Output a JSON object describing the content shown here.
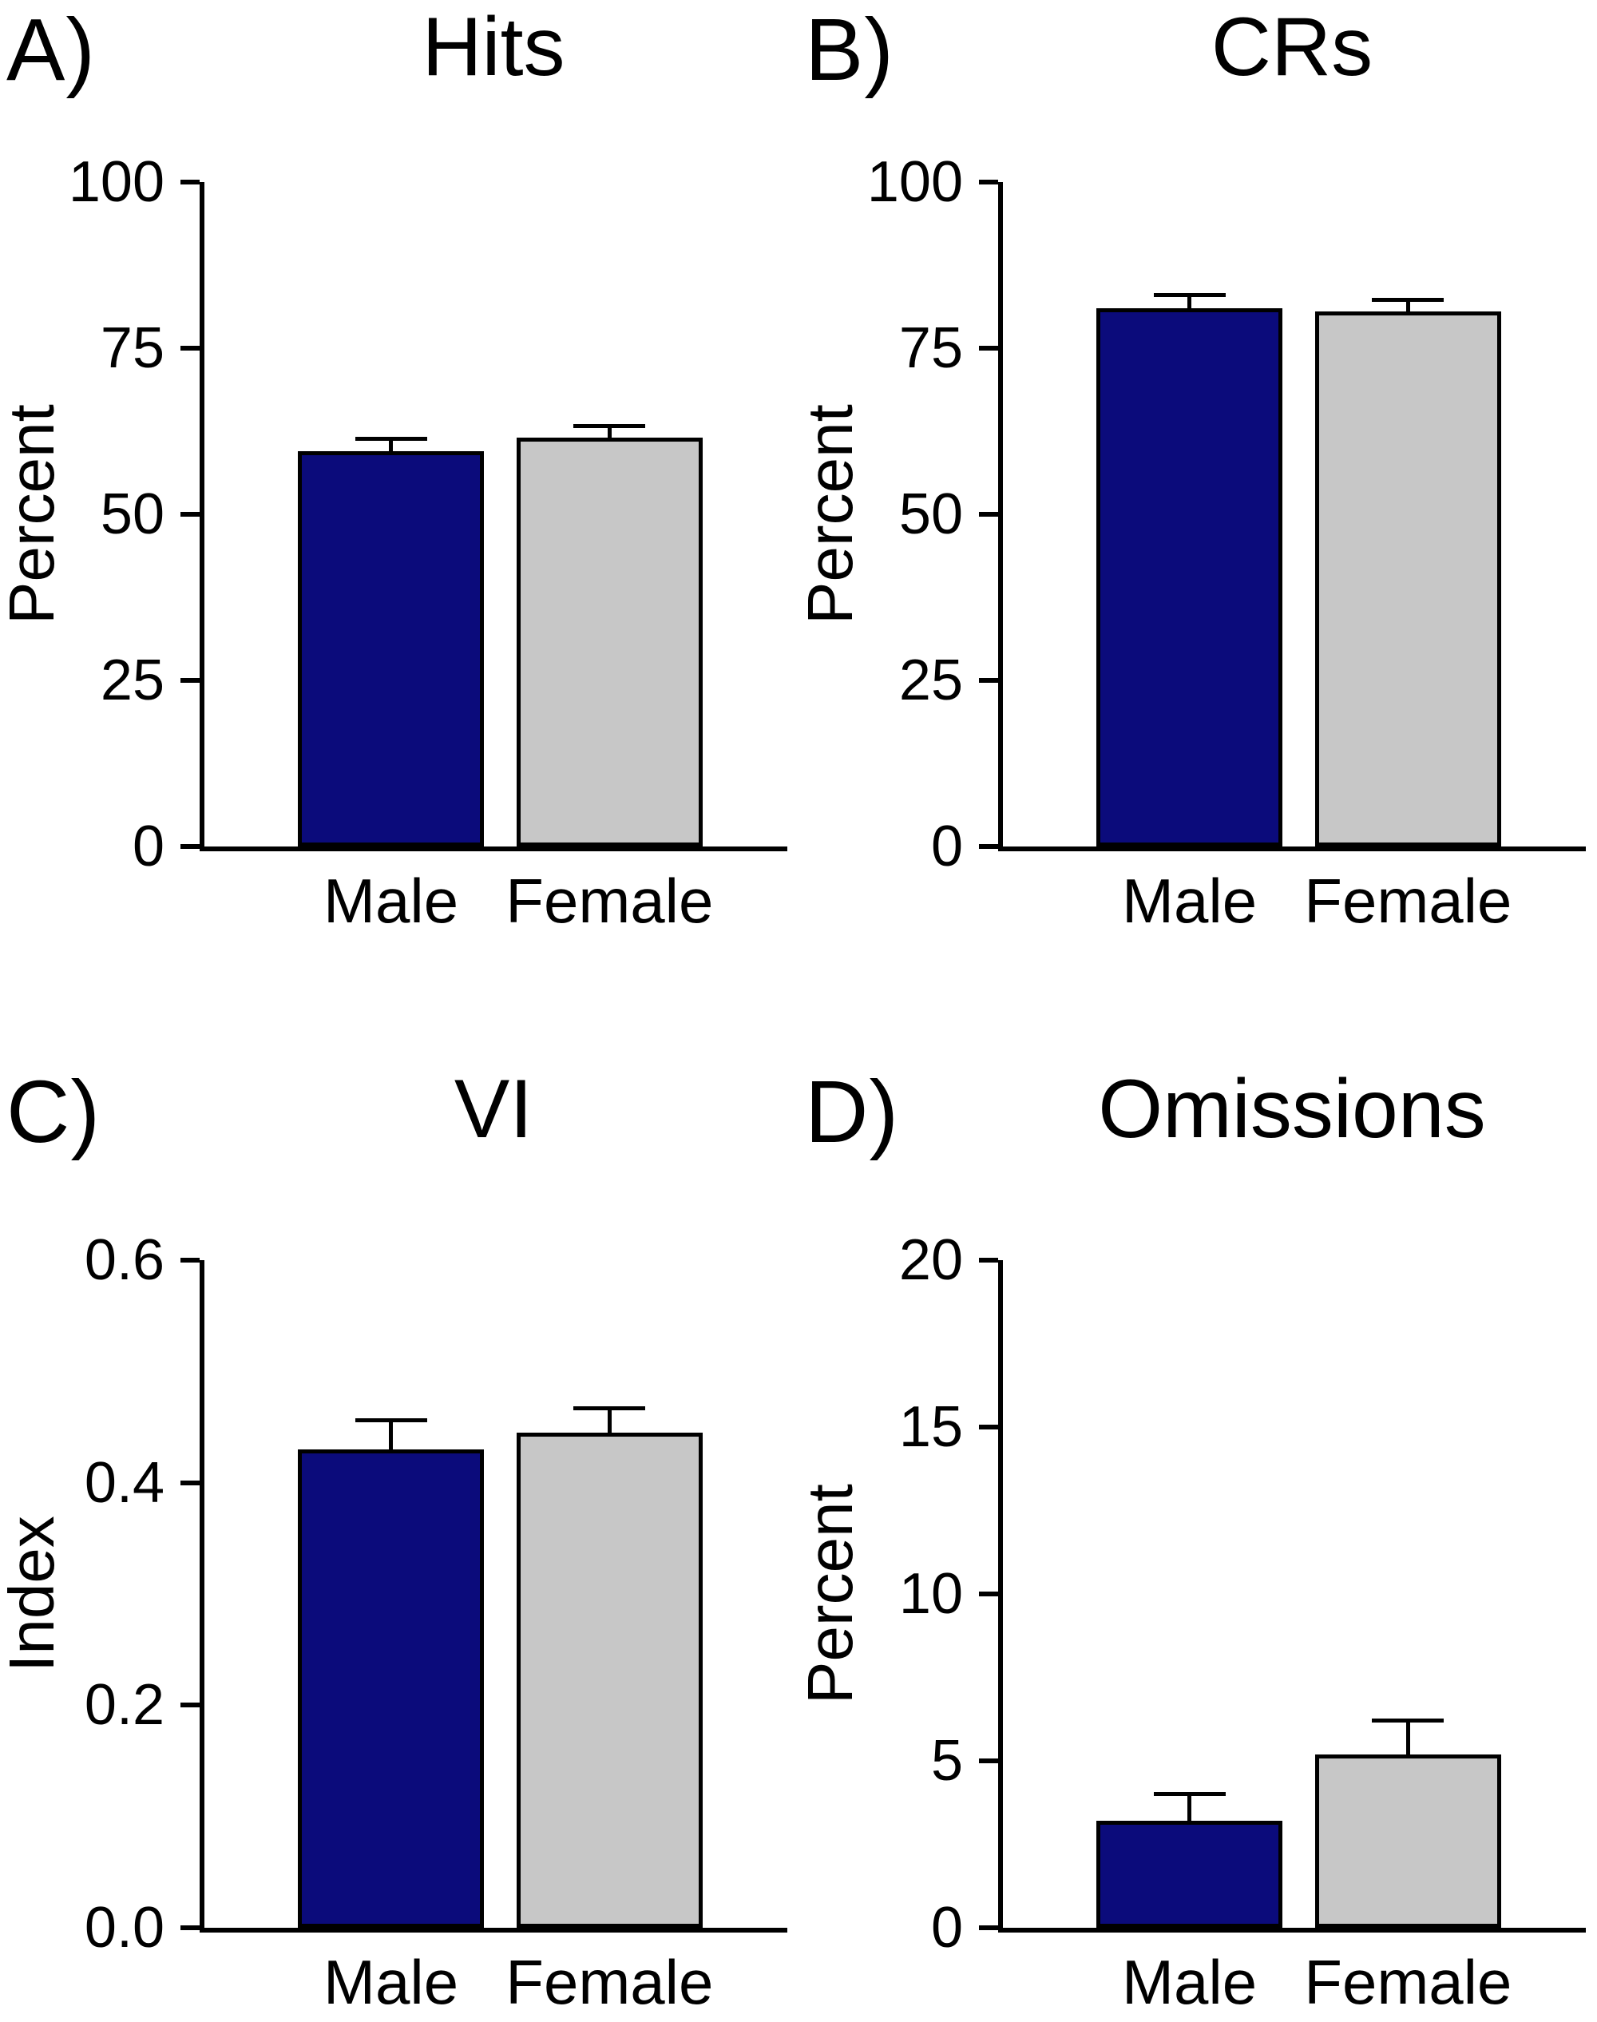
{
  "colors": {
    "male_bar": "#0b0b7b",
    "female_bar": "#c7c7c7",
    "axis": "#000000",
    "background": "#ffffff"
  },
  "chart_data": [
    {
      "type": "bar",
      "panel_label": "A)",
      "title": "Hits",
      "ylabel": "Percent",
      "categories": [
        "Male",
        "Female"
      ],
      "values": [
        59.5,
        61.5
      ],
      "errors": [
        1.8,
        1.8
      ],
      "ylim": [
        0,
        100
      ],
      "yticks": [
        0,
        25,
        50,
        75,
        100
      ],
      "ytick_labels": [
        "0",
        "25",
        "50",
        "75",
        "100"
      ],
      "bar_colors": [
        "#0b0b7b",
        "#c7c7c7"
      ],
      "grid": false,
      "legend": "none"
    },
    {
      "type": "bar",
      "panel_label": "B)",
      "title": "CRs",
      "ylabel": "Percent",
      "categories": [
        "Male",
        "Female"
      ],
      "values": [
        81,
        80.5
      ],
      "errors": [
        2.0,
        1.8
      ],
      "ylim": [
        0,
        100
      ],
      "yticks": [
        0,
        25,
        50,
        75,
        100
      ],
      "ytick_labels": [
        "0",
        "25",
        "50",
        "75",
        "100"
      ],
      "bar_colors": [
        "#0b0b7b",
        "#c7c7c7"
      ],
      "grid": false,
      "legend": "none"
    },
    {
      "type": "bar",
      "panel_label": "C)",
      "title": "VI",
      "ylabel": "Index",
      "categories": [
        "Male",
        "Female"
      ],
      "values": [
        0.43,
        0.445
      ],
      "errors": [
        0.026,
        0.022
      ],
      "ylim": [
        0,
        0.6
      ],
      "yticks": [
        0,
        0.2,
        0.4,
        0.6
      ],
      "ytick_labels": [
        "0.0",
        "0.2",
        "0.4",
        "0.6"
      ],
      "bar_colors": [
        "#0b0b7b",
        "#c7c7c7"
      ],
      "grid": false,
      "legend": "none"
    },
    {
      "type": "bar",
      "panel_label": "D)",
      "title": "Omissions",
      "ylabel": "Percent",
      "categories": [
        "Male",
        "Female"
      ],
      "values": [
        3.2,
        5.2
      ],
      "errors": [
        0.8,
        1.0
      ],
      "ylim": [
        0,
        20
      ],
      "yticks": [
        0,
        5,
        10,
        15,
        20
      ],
      "ytick_labels": [
        "0",
        "5",
        "10",
        "15",
        "20"
      ],
      "bar_colors": [
        "#0b0b7b",
        "#c7c7c7"
      ],
      "grid": false,
      "legend": "none"
    }
  ]
}
